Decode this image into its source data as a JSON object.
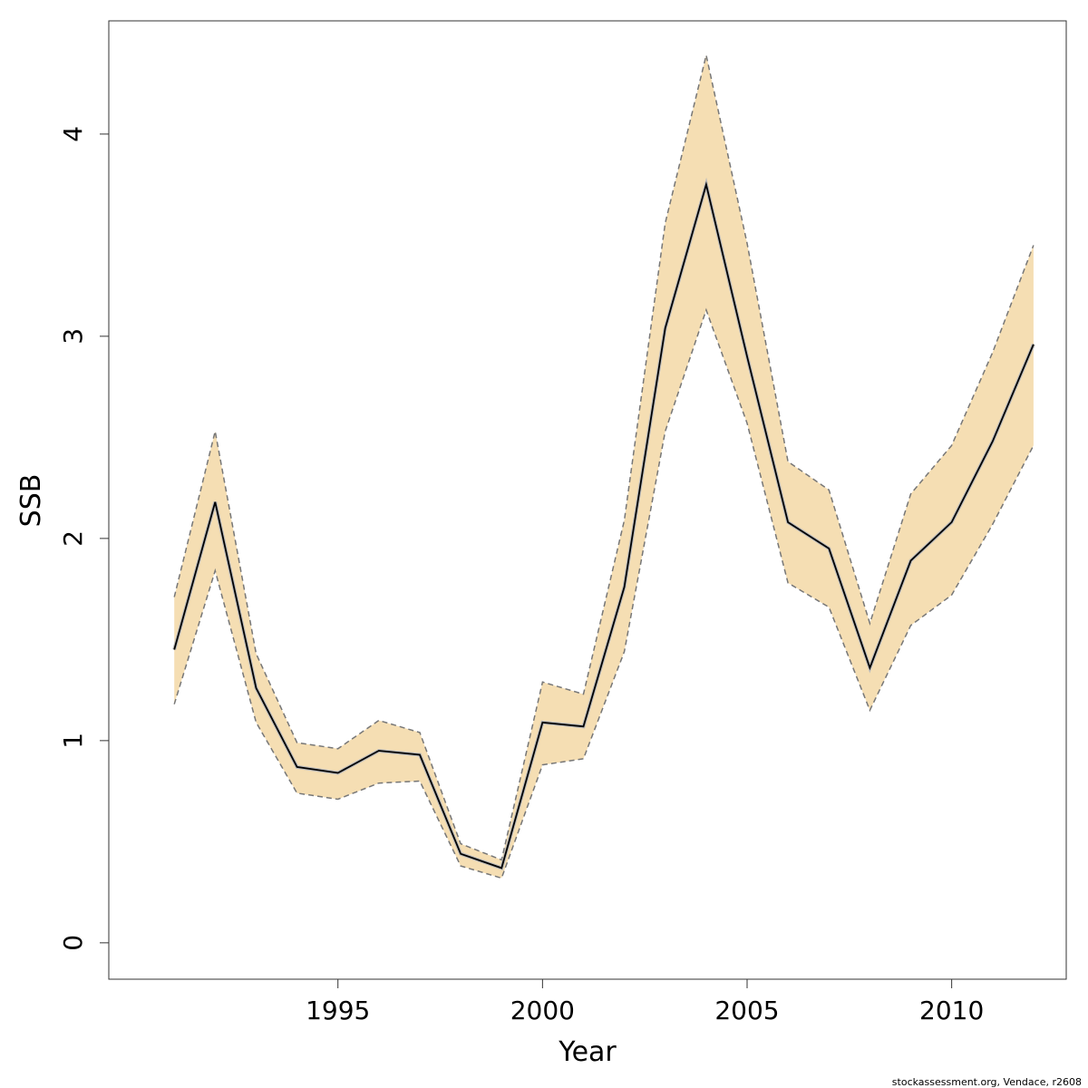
{
  "chart_data": {
    "type": "line",
    "title": "",
    "xlabel": "Year",
    "ylabel": "SSB",
    "xlim": [
      1989.4,
      2012.8
    ],
    "ylim": [
      -0.18,
      4.56
    ],
    "x_ticks": [
      1995,
      2000,
      2005,
      2010
    ],
    "y_ticks": [
      0,
      1,
      2,
      3,
      4
    ],
    "grid": false,
    "legend": "none",
    "colors": {
      "band": "#f5deb3",
      "line": "#000000",
      "bound": "#777777"
    },
    "x": [
      1991,
      1992,
      1993,
      1994,
      1995,
      1996,
      1997,
      1998,
      1999,
      2000,
      2001,
      2002,
      2003,
      2004,
      2005,
      2006,
      2007,
      2008,
      2009,
      2010,
      2011,
      2012
    ],
    "series": [
      {
        "role": "estimate",
        "values": [
          1.45,
          2.18,
          1.26,
          0.87,
          0.84,
          0.95,
          0.93,
          0.44,
          0.37,
          1.09,
          1.07,
          1.76,
          3.04,
          3.75,
          2.9,
          2.08,
          1.95,
          1.36,
          1.89,
          2.08,
          2.48,
          2.96
        ]
      },
      {
        "role": "upper",
        "values": [
          1.71,
          2.53,
          1.43,
          0.99,
          0.96,
          1.1,
          1.04,
          0.49,
          0.41,
          1.29,
          1.23,
          2.09,
          3.56,
          4.39,
          3.46,
          2.38,
          2.24,
          1.58,
          2.22,
          2.46,
          2.92,
          3.45
        ]
      },
      {
        "role": "lower",
        "values": [
          1.18,
          1.84,
          1.09,
          0.74,
          0.71,
          0.79,
          0.8,
          0.38,
          0.32,
          0.88,
          0.91,
          1.44,
          2.53,
          3.13,
          2.57,
          1.78,
          1.66,
          1.15,
          1.57,
          1.72,
          2.07,
          2.46
        ]
      }
    ]
  },
  "footer": {
    "credit": "stockassessment.org, Vendace, r2608"
  }
}
